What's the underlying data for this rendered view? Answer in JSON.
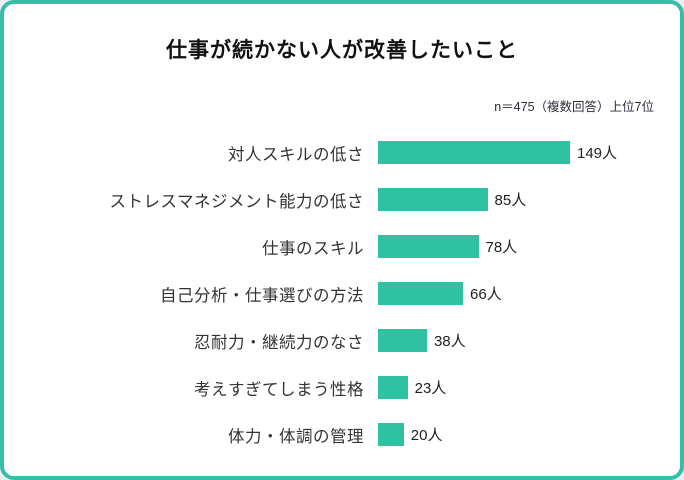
{
  "header": {
    "title": "仕事が続かない人が改善したいこと",
    "subtitle": "n＝475（複数回答）上位7位"
  },
  "colors": {
    "bar": "#2ec2a3",
    "frame_border": "#35bfa9",
    "background": "#ffffff"
  },
  "chart_data": {
    "type": "bar",
    "orientation": "horizontal",
    "title": "仕事が続かない人が改善したいこと",
    "subtitle": "n＝475（複数回答）上位7位",
    "categories": [
      "対人スキルの低さ",
      "ストレスマネジメント能力の低さ",
      "仕事のスキル",
      "自己分析・仕事選びの方法",
      "忍耐力・継続力のなさ",
      "考えすぎてしまう性格",
      "体力・体調の管理"
    ],
    "values": [
      149,
      85,
      78,
      66,
      38,
      23,
      20
    ],
    "value_suffix": "人",
    "xlabel": "",
    "ylabel": "",
    "xlim": [
      0,
      160
    ],
    "grid": false,
    "legend": "none",
    "sample_size": 475
  }
}
